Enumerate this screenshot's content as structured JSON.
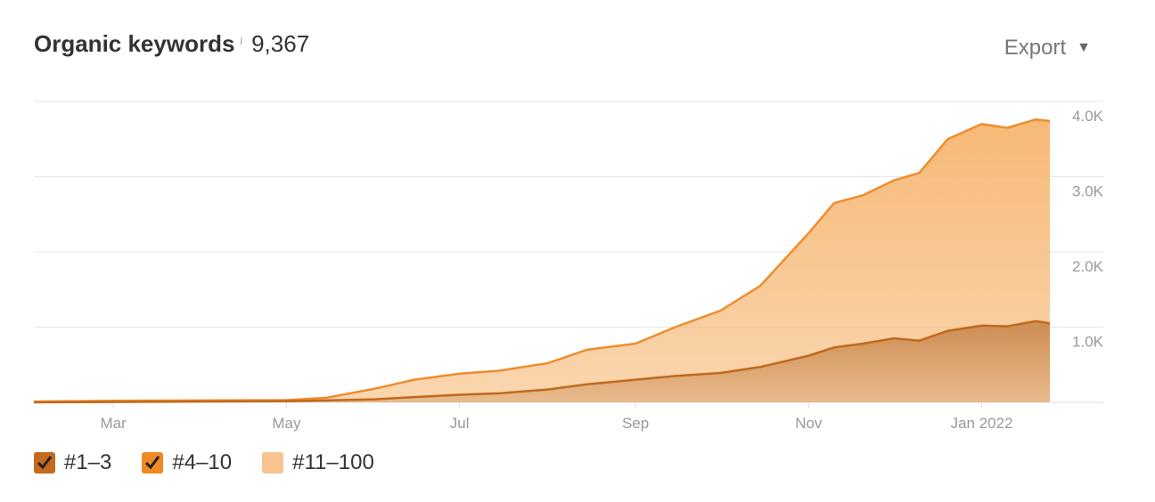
{
  "header": {
    "title": "Organic keywords",
    "info_icon": "info-icon",
    "count": "9,367",
    "export_label": "Export"
  },
  "legend": [
    {
      "label": "#1–3",
      "checked": true,
      "color": "#c46a1e"
    },
    {
      "label": "#4–10",
      "checked": true,
      "color": "#f08a24"
    },
    {
      "label": "#11–100",
      "checked": false,
      "color": "#f7c48f"
    }
  ],
  "colors": {
    "top10_line": "#c2681c",
    "top100_line": "#ee8d2e",
    "top100_fill": "#f6b56f",
    "top10_fill": "#c98a4f",
    "grid": "#e6e6e6",
    "axis_text": "#999999"
  },
  "chart_data": {
    "type": "area",
    "x_tick_labels": [
      "Mar",
      "May",
      "Jul",
      "Sep",
      "Nov",
      "Jan 2022"
    ],
    "y_tick_labels": [
      "1.0K",
      "2.0K",
      "3.0K",
      "4.0K"
    ],
    "ylim": [
      0,
      4000
    ],
    "grid": true,
    "stacked_display": "overlaid",
    "series": [
      {
        "name": "#4–10",
        "x": [
          "2021-02-01",
          "2021-03-01",
          "2021-04-01",
          "2021-05-01",
          "2021-05-15",
          "2021-06-01",
          "2021-06-15",
          "2021-07-01",
          "2021-07-15",
          "2021-08-01",
          "2021-08-15",
          "2021-09-01",
          "2021-09-15",
          "2021-10-01",
          "2021-10-15",
          "2021-11-01",
          "2021-11-10",
          "2021-11-20",
          "2021-12-01",
          "2021-12-10",
          "2021-12-20",
          "2022-01-01",
          "2022-01-10",
          "2022-01-20",
          "2022-01-25"
        ],
        "values": [
          0,
          5,
          10,
          15,
          25,
          40,
          70,
          100,
          120,
          170,
          240,
          300,
          350,
          390,
          470,
          620,
          730,
          780,
          850,
          820,
          950,
          1020,
          1010,
          1080,
          1050
        ]
      },
      {
        "name": "#11–100",
        "x": [
          "2021-02-01",
          "2021-03-01",
          "2021-04-01",
          "2021-05-01",
          "2021-05-15",
          "2021-06-01",
          "2021-06-15",
          "2021-07-01",
          "2021-07-15",
          "2021-08-01",
          "2021-08-15",
          "2021-09-01",
          "2021-09-15",
          "2021-10-01",
          "2021-10-15",
          "2021-11-01",
          "2021-11-10",
          "2021-11-20",
          "2021-12-01",
          "2021-12-10",
          "2021-12-20",
          "2022-01-01",
          "2022-01-10",
          "2022-01-20",
          "2022-01-25"
        ],
        "values": [
          10,
          20,
          25,
          30,
          60,
          180,
          300,
          380,
          420,
          520,
          700,
          780,
          1000,
          1220,
          1550,
          2250,
          2650,
          2750,
          2950,
          3050,
          3500,
          3700,
          3650,
          3760,
          3740
        ]
      }
    ]
  }
}
